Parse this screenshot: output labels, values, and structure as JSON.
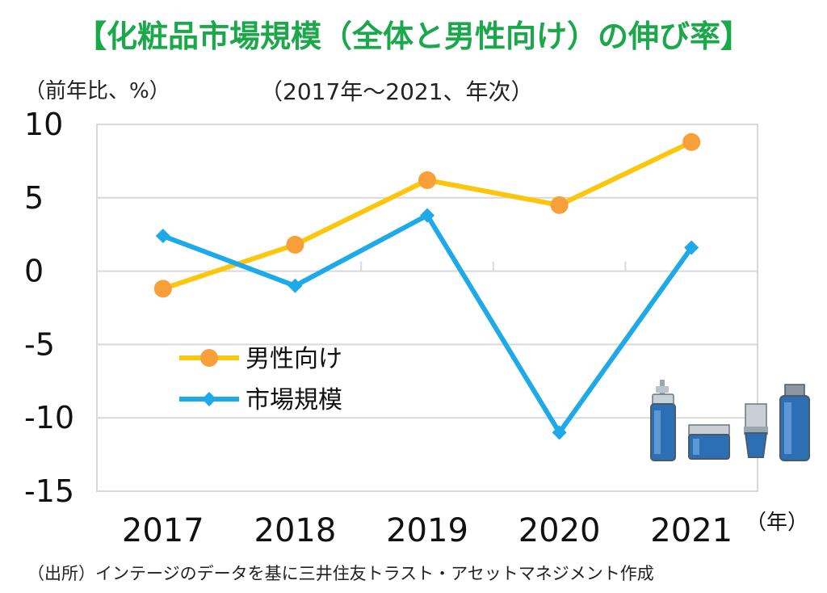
{
  "title": "【化粧品市場規模（全体と男性向け）の伸び率】",
  "y_unit_label": "（前年比、%）",
  "subtitle": "（2017年～2021、年次）",
  "x_unit_label": "（年）",
  "source": "（出所）インテージのデータを基に三井住友トラスト・アセットマネジメント作成",
  "colors": {
    "mens": "#fcc60c",
    "mens_marker": "#f7a03a",
    "market": "#1ea9e8",
    "grid": "#d9d9d9",
    "title": "#1aa84a"
  },
  "chart_data": {
    "type": "line",
    "categories": [
      "2017",
      "2018",
      "2019",
      "2020",
      "2021"
    ],
    "ylim": [
      -15,
      10
    ],
    "yticks": [
      "10",
      "5",
      "0",
      "-5",
      "-10",
      "-15"
    ],
    "ytick_values": [
      10,
      5,
      0,
      -5,
      -10,
      -15
    ],
    "legend_position": "center-left",
    "series": [
      {
        "name": "男性向け",
        "values": [
          -1.2,
          1.8,
          6.2,
          4.5,
          8.8
        ]
      },
      {
        "name": "市場規模",
        "values": [
          2.4,
          -1.0,
          3.8,
          -11.0,
          1.6
        ]
      }
    ]
  }
}
